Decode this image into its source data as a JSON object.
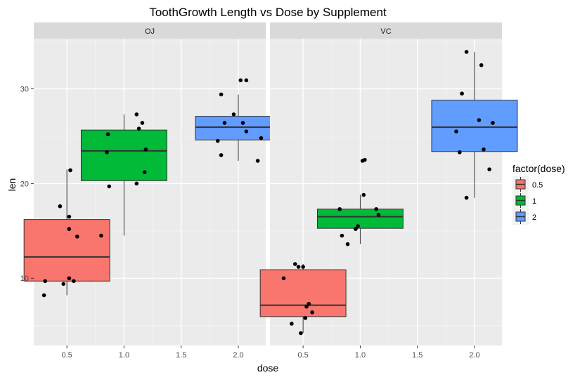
{
  "chart_data": {
    "type": "boxplot",
    "title": "ToothGrowth Length vs Dose by Supplement",
    "xlabel": "dose",
    "ylabel": "len",
    "xlim": [
      0.21,
      2.24
    ],
    "ylim": [
      2.9,
      35.3
    ],
    "x_ticks": [
      0.5,
      1.0,
      1.5,
      2.0
    ],
    "x_tick_labels": [
      "0.5",
      "1.0",
      "1.5",
      "2.0"
    ],
    "y_ticks": [
      10,
      20,
      30
    ],
    "y_tick_labels": [
      "10",
      "20",
      "30"
    ],
    "grid": true,
    "legend": {
      "title": "factor(dose)",
      "placement": "right",
      "entries": [
        {
          "label": "0.5",
          "color": "#F8766D"
        },
        {
          "label": "1",
          "color": "#00BA38"
        },
        {
          "label": "2",
          "color": "#619CFF"
        }
      ]
    },
    "panels": [
      {
        "label": "OJ",
        "boxes": [
          {
            "dose": 0.5,
            "q1": 9.7,
            "median": 12.25,
            "q3": 16.2,
            "whisker_low": 8.2,
            "whisker_high": 21.5,
            "color": "#F8766D"
          },
          {
            "dose": 1.0,
            "q1": 20.3,
            "median": 23.45,
            "q3": 25.65,
            "whisker_low": 14.5,
            "whisker_high": 27.3,
            "color": "#00BA38"
          },
          {
            "dose": 2.0,
            "q1": 24.6,
            "median": 25.95,
            "q3": 27.1,
            "whisker_low": 22.4,
            "whisker_high": 29.4,
            "color": "#619CFF"
          }
        ],
        "points": [
          [
            0.44,
            17.6
          ],
          [
            0.53,
            21.4
          ],
          [
            0.59,
            14.4
          ],
          [
            0.52,
            16.5
          ],
          [
            0.52,
            15.2
          ],
          [
            0.31,
            9.7
          ],
          [
            0.3,
            8.2
          ],
          [
            0.52,
            10.0
          ],
          [
            0.47,
            9.4
          ],
          [
            0.56,
            9.7
          ],
          [
            0.87,
            19.7
          ],
          [
            1.16,
            26.4
          ],
          [
            1.13,
            25.8
          ],
          [
            0.8,
            14.5
          ],
          [
            0.86,
            25.2
          ],
          [
            1.18,
            21.2
          ],
          [
            1.11,
            27.3
          ],
          [
            0.85,
            23.3
          ],
          [
            1.11,
            20.0
          ],
          [
            1.19,
            23.6
          ],
          [
            1.85,
            29.4
          ],
          [
            1.85,
            23.0
          ],
          [
            1.96,
            27.3
          ],
          [
            2.17,
            22.4
          ],
          [
            2.2,
            24.8
          ],
          [
            1.88,
            26.4
          ],
          [
            2.02,
            30.9
          ],
          [
            1.82,
            24.5
          ],
          [
            2.07,
            25.5
          ],
          [
            2.04,
            26.4
          ],
          [
            2.07,
            30.9
          ]
        ]
      },
      {
        "label": "VC",
        "boxes": [
          {
            "dose": 0.5,
            "q1": 5.95,
            "median": 7.15,
            "q3": 10.9,
            "whisker_low": 4.2,
            "whisker_high": 11.5,
            "color": "#F8766D"
          },
          {
            "dose": 1.0,
            "q1": 15.27,
            "median": 16.5,
            "q3": 17.3,
            "whisker_low": 13.6,
            "whisker_high": 18.8,
            "color": "#00BA38"
          },
          {
            "dose": 2.0,
            "q1": 23.38,
            "median": 25.95,
            "q3": 28.8,
            "whisker_low": 18.5,
            "whisker_high": 33.9,
            "color": "#619CFF"
          }
        ],
        "points": [
          [
            0.33,
            10.0
          ],
          [
            0.46,
            11.2
          ],
          [
            0.43,
            11.5
          ],
          [
            0.5,
            11.2
          ],
          [
            0.53,
            7.0
          ],
          [
            0.55,
            7.3
          ],
          [
            0.4,
            5.2
          ],
          [
            0.58,
            6.4
          ],
          [
            0.52,
            5.8
          ],
          [
            0.48,
            4.2
          ],
          [
            0.82,
            17.3
          ],
          [
            0.84,
            14.5
          ],
          [
            0.89,
            13.6
          ],
          [
            1.02,
            22.4
          ],
          [
            1.04,
            22.5
          ],
          [
            1.03,
            18.8
          ],
          [
            0.98,
            15.5
          ],
          [
            1.16,
            16.7
          ],
          [
            0.96,
            15.2
          ],
          [
            1.14,
            17.3
          ],
          [
            1.93,
            33.9
          ],
          [
            1.89,
            29.5
          ],
          [
            2.06,
            32.5
          ],
          [
            1.84,
            25.5
          ],
          [
            2.16,
            26.4
          ],
          [
            2.13,
            21.5
          ],
          [
            1.93,
            18.5
          ],
          [
            1.87,
            23.3
          ],
          [
            2.04,
            26.7
          ],
          [
            2.08,
            23.6
          ]
        ]
      }
    ]
  }
}
